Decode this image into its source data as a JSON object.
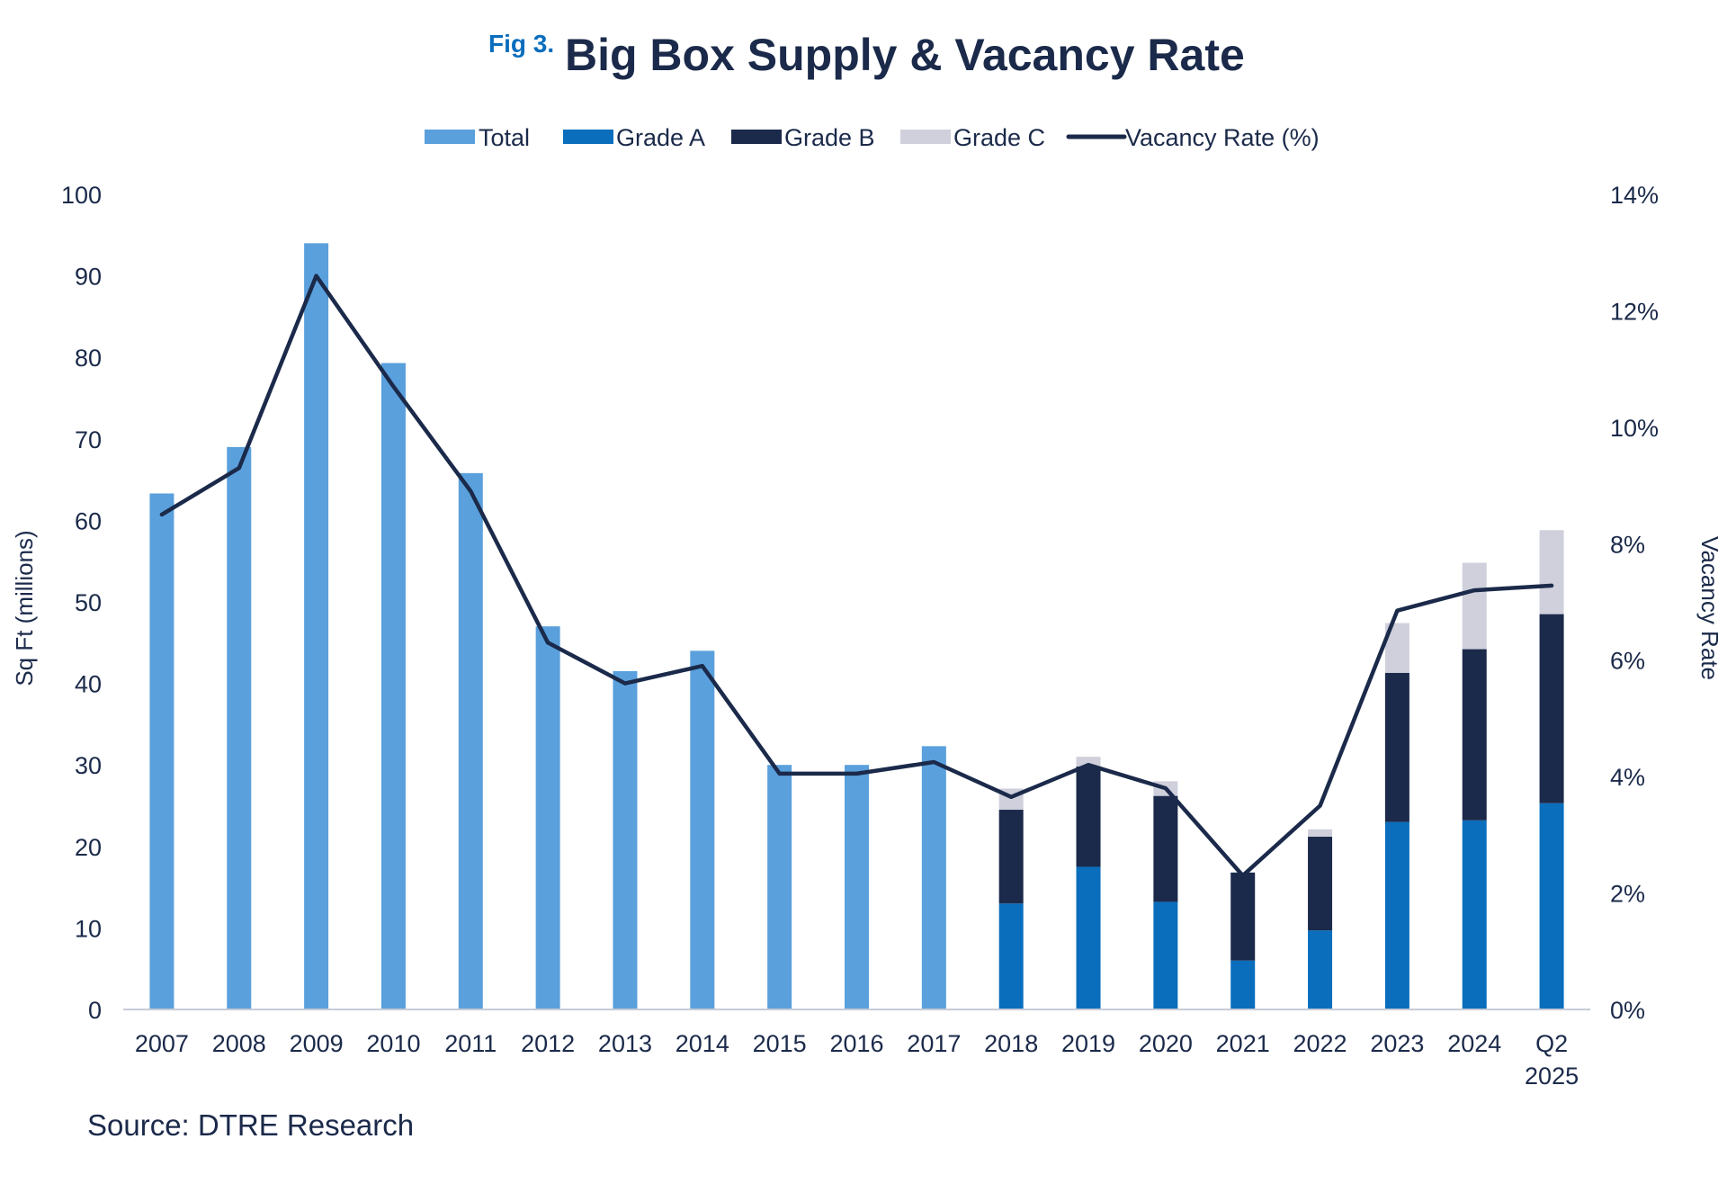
{
  "title": {
    "fig_label": "Fig 3.",
    "main": "Big Box Supply & Vacancy Rate"
  },
  "source": "Source: DTRE Research",
  "colors": {
    "total": "#5aa0dc",
    "grade_a": "#0a6ebd",
    "grade_b": "#1b2a4a",
    "grade_c": "#cfd0dc",
    "vacancy": "#1b2a4a",
    "axis": "#c8cbd6"
  },
  "chart_data": {
    "type": "bar",
    "categories": [
      "2007",
      "2008",
      "2009",
      "2010",
      "2011",
      "2012",
      "2013",
      "2014",
      "2015",
      "2016",
      "2017",
      "2018",
      "2019",
      "2020",
      "2021",
      "2022",
      "2023",
      "2024",
      "Q2\n2025"
    ],
    "category_lines": [
      [
        "2007"
      ],
      [
        "2008"
      ],
      [
        "2009"
      ],
      [
        "2010"
      ],
      [
        "2011"
      ],
      [
        "2012"
      ],
      [
        "2013"
      ],
      [
        "2014"
      ],
      [
        "2015"
      ],
      [
        "2016"
      ],
      [
        "2017"
      ],
      [
        "2018"
      ],
      [
        "2019"
      ],
      [
        "2020"
      ],
      [
        "2021"
      ],
      [
        "2022"
      ],
      [
        "2023"
      ],
      [
        "2024"
      ],
      [
        "Q2",
        "2025"
      ]
    ],
    "series": [
      {
        "key": "total",
        "name": "Total",
        "values": [
          63.3,
          69.0,
          94.0,
          79.3,
          65.8,
          47.0,
          41.5,
          44.0,
          30.0,
          30.0,
          32.3,
          null,
          null,
          null,
          null,
          null,
          null,
          null,
          null
        ]
      },
      {
        "key": "grade_a",
        "name": "Grade A",
        "values": [
          null,
          null,
          null,
          null,
          null,
          null,
          null,
          null,
          null,
          null,
          null,
          13.0,
          17.5,
          13.2,
          6.0,
          9.7,
          23.0,
          23.2,
          25.3
        ]
      },
      {
        "key": "grade_b",
        "name": "Grade B",
        "values": [
          null,
          null,
          null,
          null,
          null,
          null,
          null,
          null,
          null,
          null,
          null,
          11.5,
          12.3,
          13.0,
          10.8,
          11.5,
          18.3,
          21.0,
          23.2
        ]
      },
      {
        "key": "grade_c",
        "name": "Grade C",
        "values": [
          null,
          null,
          null,
          null,
          null,
          null,
          null,
          null,
          null,
          null,
          null,
          2.6,
          1.2,
          1.8,
          0.0,
          0.9,
          6.1,
          10.6,
          10.3
        ]
      },
      {
        "key": "vacancy",
        "name": "Vacancy Rate (%)",
        "axis": "right",
        "type": "line",
        "values": [
          8.5,
          9.3,
          12.6,
          10.7,
          8.9,
          6.3,
          5.6,
          5.9,
          4.05,
          4.05,
          4.25,
          3.65,
          4.2,
          3.8,
          2.3,
          3.5,
          6.85,
          7.2,
          7.28
        ]
      }
    ],
    "ylabel": "Sq Ft (millions)",
    "y2label": "Vacancy Rate",
    "ylim": [
      0,
      100
    ],
    "yticks": [
      "0",
      "10",
      "20",
      "30",
      "40",
      "50",
      "60",
      "70",
      "80",
      "90",
      "100"
    ],
    "y2lim": [
      0,
      14
    ],
    "y2ticks": [
      "0%",
      "2%",
      "4%",
      "6%",
      "8%",
      "10%",
      "12%",
      "14%"
    ],
    "legend": [
      "Total",
      "Grade A",
      "Grade B",
      "Grade C",
      "Vacancy Rate (%)"
    ],
    "legend_position": "top-center",
    "grid": false
  }
}
